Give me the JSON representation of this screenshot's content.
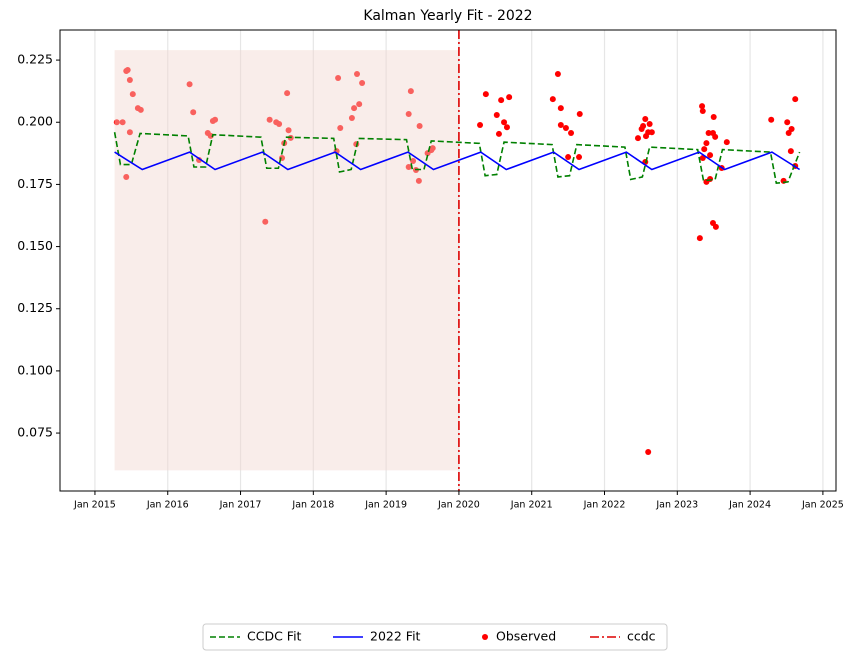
{
  "chart_data": {
    "type": "line",
    "title": "Kalman Yearly Fit - 2022",
    "xlim": [
      2014.52,
      2025.18
    ],
    "ylim": [
      0.0517,
      0.2371
    ],
    "xticks": [
      {
        "value": 2015,
        "label": "Jan 2015"
      },
      {
        "value": 2016,
        "label": "Jan 2016"
      },
      {
        "value": 2017,
        "label": "Jan 2017"
      },
      {
        "value": 2018,
        "label": "Jan 2018"
      },
      {
        "value": 2019,
        "label": "Jan 2019"
      },
      {
        "value": 2020,
        "label": "Jan 2020"
      },
      {
        "value": 2021,
        "label": "Jan 2021"
      },
      {
        "value": 2022,
        "label": "Jan 2022"
      },
      {
        "value": 2023,
        "label": "Jan 2023"
      },
      {
        "value": 2024,
        "label": "Jan 2024"
      },
      {
        "value": 2025,
        "label": "Jan 2025"
      }
    ],
    "yticks": [
      0.075,
      {
        "value": 0.1,
        "label": "0.100"
      },
      0.125,
      {
        "value": 0.15,
        "label": "0.150"
      },
      0.175,
      {
        "value": 0.2,
        "label": "0.200"
      },
      0.225
    ],
    "grid": "x",
    "shade": {
      "x": [
        2015.27,
        2020.0
      ],
      "y": [
        0.06,
        0.229
      ],
      "color": "#f2d6d0"
    },
    "legend": "bottom",
    "series": [
      {
        "name": "CCDC Fit",
        "kind": "line",
        "style": "dashed",
        "color": "#008000",
        "x": [
          2015.27,
          2015.35,
          2015.5,
          2015.62,
          2016.28,
          2016.36,
          2016.52,
          2016.62,
          2017.28,
          2017.36,
          2017.52,
          2017.62,
          2018.28,
          2018.36,
          2018.52,
          2018.62,
          2019.28,
          2019.36,
          2019.52,
          2019.62,
          2020.28,
          2020.36,
          2020.52,
          2020.62,
          2021.28,
          2021.36,
          2021.52,
          2021.62,
          2022.28,
          2022.36,
          2022.52,
          2022.62,
          2023.28,
          2023.36,
          2023.52,
          2023.62,
          2024.28,
          2024.36,
          2024.52,
          2024.68
        ],
        "values": [
          0.196,
          0.183,
          0.183,
          0.1955,
          0.1945,
          0.182,
          0.182,
          0.195,
          0.194,
          0.1815,
          0.1815,
          0.194,
          0.1935,
          0.18,
          0.181,
          0.1935,
          0.193,
          0.181,
          0.181,
          0.1925,
          0.1915,
          0.1785,
          0.179,
          0.192,
          0.191,
          0.178,
          0.1785,
          0.191,
          0.19,
          0.177,
          0.178,
          0.19,
          0.189,
          0.1765,
          0.177,
          0.189,
          0.188,
          0.1755,
          0.176,
          0.188
        ]
      },
      {
        "name": "2022 Fit",
        "kind": "line",
        "style": "solid",
        "color": "#0000ff",
        "x": [
          2015.27,
          2015.65,
          2016.3,
          2016.65,
          2017.3,
          2017.65,
          2018.3,
          2018.65,
          2019.3,
          2019.65,
          2020.3,
          2020.65,
          2021.3,
          2021.65,
          2022.3,
          2022.65,
          2023.3,
          2023.65,
          2024.3,
          2024.68
        ],
        "values": [
          0.188,
          0.181,
          0.188,
          0.181,
          0.188,
          0.181,
          0.188,
          0.181,
          0.188,
          0.181,
          0.188,
          0.181,
          0.188,
          0.181,
          0.188,
          0.181,
          0.188,
          0.181,
          0.188,
          0.181
        ]
      },
      {
        "name": "Observed",
        "kind": "scatter",
        "color": "#ff0000",
        "x": [
          2015.3,
          2015.38,
          2015.43,
          2015.45,
          2015.48,
          2015.52,
          2015.48,
          2015.43,
          2015.59,
          2015.63,
          2016.3,
          2016.35,
          2016.43,
          2016.55,
          2016.59,
          2016.62,
          2016.65,
          2017.34,
          2017.4,
          2017.49,
          2017.53,
          2017.57,
          2017.6,
          2017.64,
          2017.66,
          2017.69,
          2018.32,
          2018.34,
          2018.37,
          2018.53,
          2018.56,
          2018.6,
          2018.63,
          2018.67,
          2018.59,
          2019.34,
          2019.31,
          2019.31,
          2019.37,
          2019.41,
          2019.45,
          2019.46,
          2019.57,
          2019.62,
          2019.64,
          2020.29,
          2020.37,
          2020.52,
          2020.55,
          2020.58,
          2020.62,
          2020.66,
          2020.69,
          2021.29,
          2021.36,
          2021.4,
          2021.4,
          2021.47,
          2021.54,
          2021.5,
          2021.66,
          2021.65,
          2022.46,
          2022.51,
          2022.53,
          2022.56,
          2022.57,
          2022.6,
          2022.62,
          2022.65,
          2022.56,
          2022.6,
          2023.31,
          2023.34,
          2023.35,
          2023.35,
          2023.37,
          2023.4,
          2023.43,
          2023.45,
          2023.49,
          2023.49,
          2023.52,
          2023.53,
          2023.5,
          2023.4,
          2023.45,
          2023.68,
          2023.61,
          2024.29,
          2024.51,
          2024.53,
          2024.57,
          2024.62,
          2024.56,
          2024.46,
          2024.62
        ],
        "values": [
          0.2,
          0.2,
          0.2206,
          0.221,
          0.217,
          0.2113,
          0.196,
          0.178,
          0.2057,
          0.205,
          0.2153,
          0.204,
          0.1848,
          0.1957,
          0.1945,
          0.2005,
          0.201,
          0.16,
          0.201,
          0.2,
          0.1993,
          0.1856,
          0.1916,
          0.2117,
          0.1968,
          0.1937,
          0.1884,
          0.2178,
          0.1977,
          0.2017,
          0.2057,
          0.2194,
          0.2073,
          0.2158,
          0.1912,
          0.2125,
          0.2033,
          0.182,
          0.1844,
          0.1808,
          0.1764,
          0.1985,
          0.1876,
          0.1888,
          0.1896,
          0.1989,
          0.2113,
          0.2029,
          0.1953,
          0.2089,
          0.2,
          0.198,
          0.2101,
          0.2093,
          0.2194,
          0.2057,
          0.1989,
          0.1977,
          0.1957,
          0.186,
          0.2033,
          0.186,
          0.1936,
          0.1973,
          0.1985,
          0.2013,
          0.1944,
          0.196,
          0.1993,
          0.196,
          0.184,
          0.0674,
          0.1534,
          0.2065,
          0.2045,
          0.1856,
          0.1892,
          0.1916,
          0.1957,
          0.1868,
          0.1957,
          0.1595,
          0.1941,
          0.1579,
          0.2021,
          0.176,
          0.1772,
          0.192,
          0.1816,
          0.201,
          0.2,
          0.1957,
          0.1973,
          0.2093,
          0.1884,
          0.1764,
          0.1824
        ]
      },
      {
        "name": "ccdc",
        "kind": "vline",
        "style": "dashdot",
        "color": "#dd0000",
        "x": 2020.0
      }
    ]
  }
}
